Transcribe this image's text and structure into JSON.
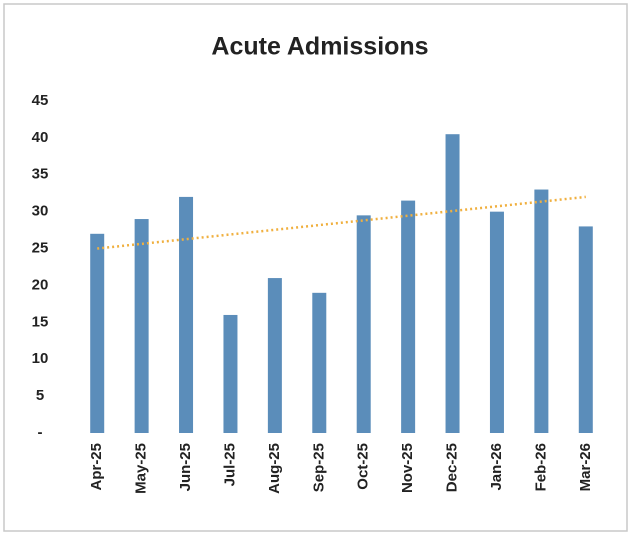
{
  "chart_data": {
    "type": "bar",
    "title": "Acute Admissions",
    "categories": [
      "Apr-25",
      "May-25",
      "Jun-25",
      "Jul-25",
      "Aug-25",
      "Sep-25",
      "Oct-25",
      "Nov-25",
      "Dec-25",
      "Jan-26",
      "Feb-26",
      "Mar-26"
    ],
    "values": [
      27,
      29,
      32,
      16,
      21,
      19,
      29.5,
      31.5,
      40.5,
      30,
      33,
      28
    ],
    "color": "#5b8dba",
    "ylim": [
      0,
      45
    ],
    "yticks": [
      {
        "value": 0,
        "label": "-"
      },
      5,
      10,
      15,
      20,
      25,
      30,
      35,
      40,
      45
    ],
    "grid": false,
    "trendline": {
      "start": 25,
      "end": 32,
      "color": "#f0b040"
    }
  }
}
